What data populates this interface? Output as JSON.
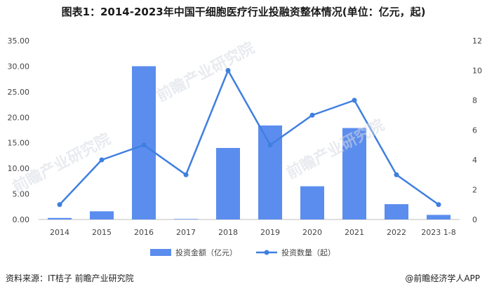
{
  "title": "图表1：2014-2023年中国干细胞医疗行业投融资整体情况(单位：亿元，起)",
  "footer": {
    "source": "资料来源：IT桔子 前瞻产业研究院",
    "brand": "@前瞻经济学人APP"
  },
  "watermarks": [
    "前瞻产业研究院",
    "前瞻产业研究院",
    "前瞻产业研究院"
  ],
  "colors": {
    "bar": "#5b8def",
    "line": "#3f7fe0",
    "axis": "#bfbfbf",
    "text": "#444444"
  },
  "chart_data": {
    "type": "bar",
    "categories": [
      "2014",
      "2015",
      "2016",
      "2017",
      "2018",
      "2019",
      "2020",
      "2021",
      "2022",
      "2023 1-8"
    ],
    "series": [
      {
        "name": "投资金额（亿元）",
        "type": "bar",
        "axis": "left",
        "values": [
          0.3,
          1.6,
          30.0,
          0.1,
          14.0,
          18.4,
          6.5,
          17.9,
          3.0,
          0.9
        ]
      },
      {
        "name": "投资数量（起）",
        "type": "line",
        "axis": "right",
        "values": [
          1,
          4,
          5,
          3,
          10,
          5,
          7,
          8,
          3,
          1
        ]
      }
    ],
    "y_left": {
      "min": 0,
      "max": 35,
      "step": 5,
      "ticks": [
        "0.00",
        "5.00",
        "10.00",
        "15.00",
        "20.00",
        "25.00",
        "30.00",
        "35.00"
      ]
    },
    "y_right": {
      "min": 0,
      "max": 12,
      "step": 2,
      "ticks": [
        "0",
        "2",
        "4",
        "6",
        "8",
        "10",
        "12"
      ]
    },
    "legend_position": "bottom",
    "grid": false
  }
}
